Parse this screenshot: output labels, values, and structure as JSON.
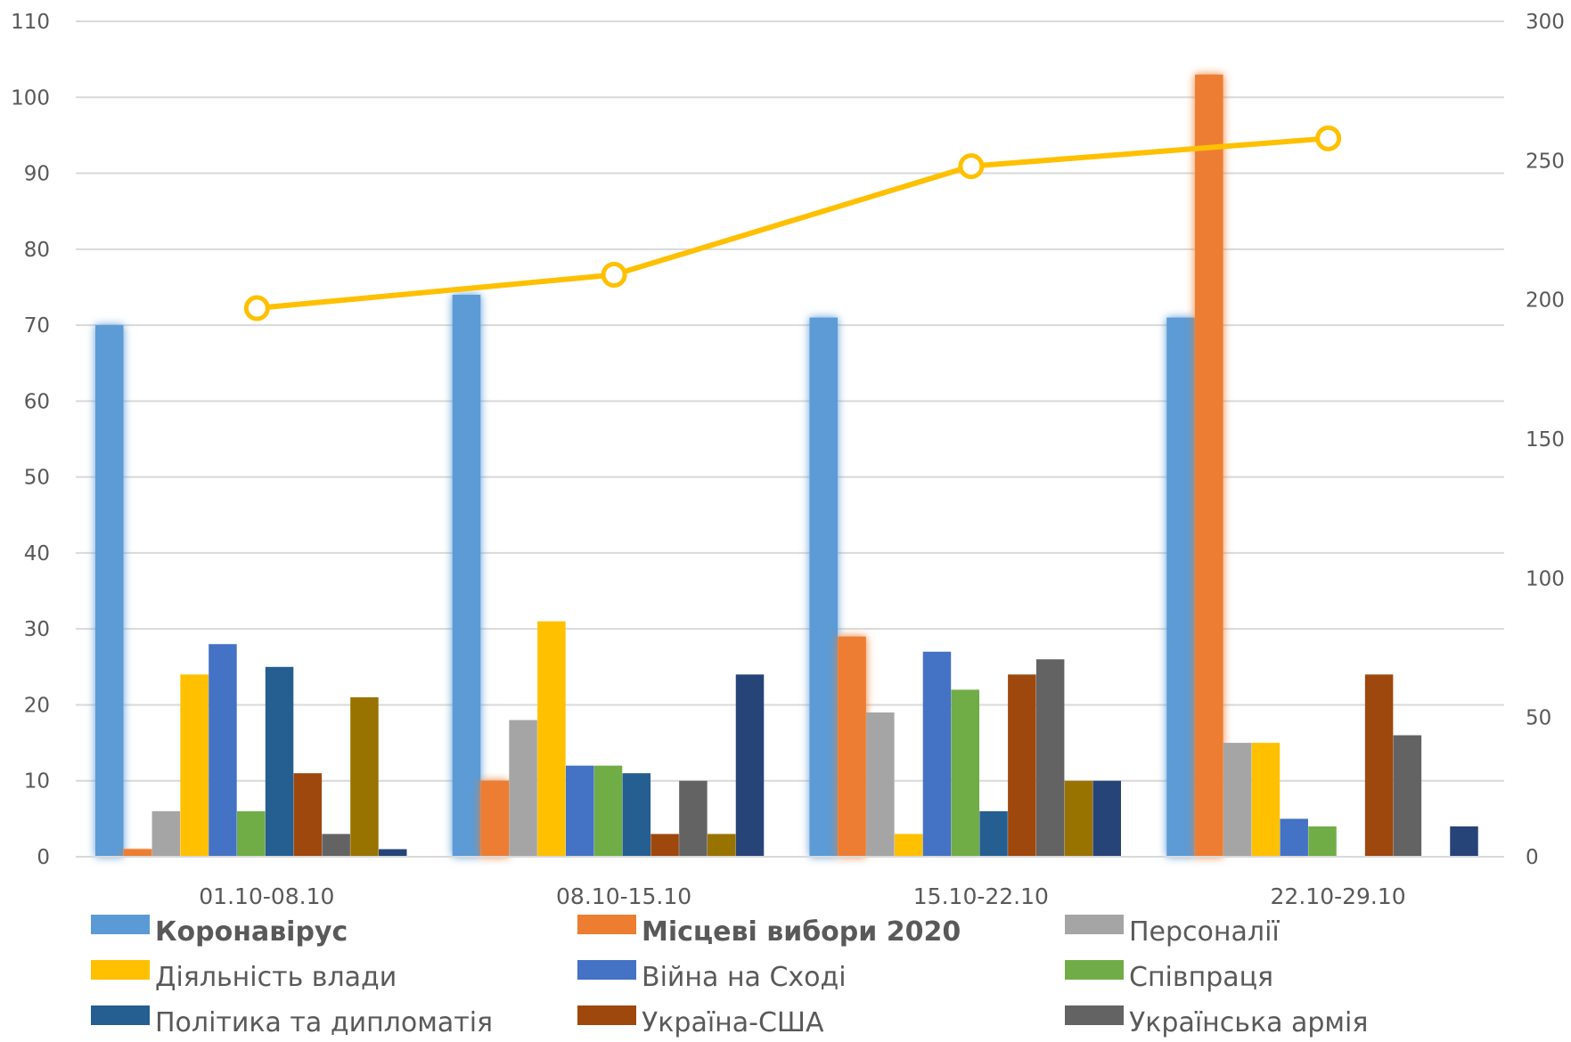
{
  "chart_data": {
    "type": "bar",
    "categories": [
      "01.10-08.10",
      "08.10-15.10",
      "15.10-22.10",
      "22.10-29.10"
    ],
    "y_left": {
      "min": 0,
      "max": 110,
      "step": 10,
      "ticks": [
        "0",
        "10",
        "20",
        "30",
        "40",
        "50",
        "60",
        "70",
        "80",
        "90",
        "100",
        "110"
      ]
    },
    "y_right": {
      "min": 0,
      "max": 300,
      "step": 50,
      "ticks": [
        "0",
        "50",
        "100",
        "150",
        "200",
        "250",
        "300"
      ]
    },
    "grid": true,
    "legend_position": "bottom",
    "series": [
      {
        "name": "Коронавірус",
        "color": "#5B9BD5",
        "bold": true,
        "glow": true,
        "values": [
          70,
          74,
          71,
          71
        ]
      },
      {
        "name": "Місцеві вибори 2020",
        "color": "#ED7D31",
        "bold": true,
        "glow": true,
        "values": [
          1,
          10,
          29,
          103
        ]
      },
      {
        "name": "Персоналії",
        "color": "#A5A5A5",
        "values": [
          6,
          18,
          19,
          15
        ]
      },
      {
        "name": "Діяльність влади",
        "color": "#FFC000",
        "values": [
          24,
          31,
          3,
          15
        ]
      },
      {
        "name": "Війна на Сході",
        "color": "#4472C4",
        "values": [
          28,
          12,
          27,
          5
        ]
      },
      {
        "name": "Співпраця",
        "color": "#70AD47",
        "values": [
          6,
          12,
          22,
          4
        ]
      },
      {
        "name": "Політика та дипломатія",
        "color": "#255E91",
        "values": [
          25,
          11,
          6,
          0
        ]
      },
      {
        "name": "Україна-США",
        "color": "#9E480E",
        "values": [
          11,
          3,
          24,
          24
        ]
      },
      {
        "name": "Українська армія",
        "color": "#636363",
        "values": [
          3,
          10,
          26,
          16
        ]
      },
      {
        "color": "#997300",
        "values": [
          21,
          3,
          10,
          0
        ]
      },
      {
        "color": "#264478",
        "values": [
          1,
          24,
          10,
          4
        ]
      }
    ],
    "line_series": {
      "color": "#FFC000",
      "axis": "right",
      "values": [
        197,
        209,
        248,
        258
      ]
    }
  }
}
